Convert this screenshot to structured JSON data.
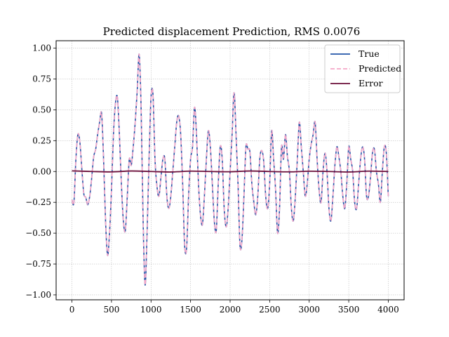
{
  "chart_data": {
    "type": "line",
    "title": "Predicted displacement Prediction, RMS 0.0076",
    "xlabel": "",
    "ylabel": "",
    "xlim": [
      -200,
      4200
    ],
    "ylim": [
      -1.04,
      1.06
    ],
    "xticks": [
      0,
      500,
      1000,
      1500,
      2000,
      2500,
      3000,
      3500,
      4000
    ],
    "xtick_labels": [
      "0",
      "500",
      "1000",
      "1500",
      "2000",
      "2500",
      "3000",
      "3500",
      "4000"
    ],
    "yticks": [
      1.0,
      0.75,
      0.5,
      0.25,
      0.0,
      -0.25,
      -0.5,
      -0.75,
      -1.0
    ],
    "ytick_labels": [
      "1.00",
      "0.75",
      "0.50",
      "0.25",
      "0.00",
      "−0.25",
      "−0.50",
      "−0.75",
      "−1.00"
    ],
    "grid": true,
    "legend_position": "top-right",
    "series": [
      {
        "name": "True",
        "color": "#2255a8",
        "style": "solid",
        "x": [
          0,
          25,
          50,
          75,
          100,
          125,
          150,
          175,
          200,
          225,
          250,
          275,
          300,
          325,
          350,
          375,
          400,
          425,
          450,
          475,
          500,
          525,
          550,
          575,
          600,
          625,
          650,
          675,
          700,
          725,
          750,
          775,
          800,
          825,
          850,
          875,
          900,
          925,
          950,
          975,
          1000,
          1025,
          1050,
          1075,
          1100,
          1125,
          1150,
          1175,
          1200,
          1225,
          1250,
          1275,
          1300,
          1325,
          1350,
          1375,
          1400,
          1425,
          1450,
          1475,
          1500,
          1525,
          1550,
          1575,
          1600,
          1625,
          1650,
          1675,
          1700,
          1725,
          1750,
          1775,
          1800,
          1825,
          1850,
          1875,
          1900,
          1925,
          1950,
          1975,
          2000,
          2025,
          2050,
          2075,
          2100,
          2125,
          2150,
          2175,
          2200,
          2225,
          2250,
          2275,
          2300,
          2325,
          2350,
          2375,
          2400,
          2425,
          2450,
          2475,
          2500,
          2525,
          2550,
          2575,
          2600,
          2625,
          2650,
          2675,
          2700,
          2725,
          2750,
          2775,
          2800,
          2825,
          2850,
          2875,
          2900,
          2925,
          2950,
          2975,
          3000,
          3025,
          3050,
          3075,
          3100,
          3125,
          3150,
          3175,
          3200,
          3225,
          3250,
          3275,
          3300,
          3325,
          3350,
          3375,
          3400,
          3425,
          3450,
          3475,
          3500,
          3525,
          3550,
          3575,
          3600,
          3625,
          3650,
          3675,
          3700,
          3725,
          3750,
          3775,
          3800,
          3825,
          3850,
          3875,
          3900,
          3925,
          3950,
          3975,
          4000
        ],
        "y": [
          -0.23,
          -0.25,
          0.1,
          0.3,
          0.24,
          0.02,
          -0.18,
          -0.21,
          -0.27,
          -0.2,
          -0.05,
          0.12,
          0.18,
          0.3,
          0.4,
          0.47,
          0.1,
          -0.4,
          -0.68,
          -0.5,
          -0.15,
          0.3,
          0.55,
          0.6,
          0.3,
          -0.1,
          -0.4,
          -0.48,
          -0.2,
          0.1,
          0.05,
          0.2,
          0.4,
          0.65,
          0.95,
          0.5,
          -0.4,
          -0.92,
          -0.5,
          0.1,
          0.6,
          0.62,
          0.1,
          -0.12,
          -0.2,
          -0.05,
          0.1,
          0.1,
          -0.2,
          -0.3,
          -0.2,
          0.0,
          0.2,
          0.4,
          0.45,
          0.3,
          -0.1,
          -0.6,
          -0.62,
          -0.2,
          0.1,
          0.2,
          0.52,
          0.3,
          -0.1,
          -0.35,
          -0.43,
          -0.2,
          0.1,
          0.33,
          0.2,
          -0.1,
          -0.4,
          -0.48,
          -0.1,
          0.2,
          0.1,
          -0.3,
          -0.45,
          -0.3,
          0.0,
          0.3,
          0.64,
          0.3,
          -0.1,
          -0.6,
          -0.55,
          -0.2,
          0.2,
          0.18,
          0.16,
          -0.1,
          -0.25,
          -0.35,
          -0.2,
          0.1,
          0.17,
          0.08,
          -0.2,
          -0.3,
          -0.1,
          0.33,
          0.1,
          -0.15,
          -0.5,
          -0.3,
          0.2,
          0.1,
          0.3,
          0.12,
          0.0,
          -0.3,
          -0.4,
          -0.2,
          0.1,
          0.4,
          0.2,
          0.0,
          -0.2,
          -0.1,
          0.1,
          0.22,
          0.3,
          0.4,
          0.1,
          -0.15,
          -0.25,
          0.0,
          0.15,
          0.0,
          -0.3,
          -0.4,
          -0.2,
          0.05,
          0.2,
          0.12,
          0.0,
          -0.2,
          -0.3,
          -0.1,
          0.2,
          0.1,
          0.0,
          -0.25,
          -0.3,
          -0.1,
          0.1,
          0.2,
          0.1,
          -0.2,
          -0.2,
          -0.05,
          0.15,
          0.18,
          0.0,
          -0.1,
          -0.25,
          0.0,
          0.2,
          0.15,
          -0.2
        ]
      },
      {
        "name": "Predicted",
        "color": "#f4a6c8",
        "style": "dashed",
        "x": [
          0,
          25,
          50,
          75,
          100,
          125,
          150,
          175,
          200,
          225,
          250,
          275,
          300,
          325,
          350,
          375,
          400,
          425,
          450,
          475,
          500,
          525,
          550,
          575,
          600,
          625,
          650,
          675,
          700,
          725,
          750,
          775,
          800,
          825,
          850,
          875,
          900,
          925,
          950,
          975,
          1000,
          1025,
          1050,
          1075,
          1100,
          1125,
          1150,
          1175,
          1200,
          1225,
          1250,
          1275,
          1300,
          1325,
          1350,
          1375,
          1400,
          1425,
          1450,
          1475,
          1500,
          1525,
          1550,
          1575,
          1600,
          1625,
          1650,
          1675,
          1700,
          1725,
          1750,
          1775,
          1800,
          1825,
          1850,
          1875,
          1900,
          1925,
          1950,
          1975,
          2000,
          2025,
          2050,
          2075,
          2100,
          2125,
          2150,
          2175,
          2200,
          2225,
          2250,
          2275,
          2300,
          2325,
          2350,
          2375,
          2400,
          2425,
          2450,
          2475,
          2500,
          2525,
          2550,
          2575,
          2600,
          2625,
          2650,
          2675,
          2700,
          2725,
          2750,
          2775,
          2800,
          2825,
          2850,
          2875,
          2900,
          2925,
          2950,
          2975,
          3000,
          3025,
          3050,
          3075,
          3100,
          3125,
          3150,
          3175,
          3200,
          3225,
          3250,
          3275,
          3300,
          3325,
          3350,
          3375,
          3400,
          3425,
          3450,
          3475,
          3500,
          3525,
          3550,
          3575,
          3600,
          3625,
          3650,
          3675,
          3700,
          3725,
          3750,
          3775,
          3800,
          3825,
          3850,
          3875,
          3900,
          3925,
          3950,
          3975,
          4000
        ],
        "y": [
          -0.23,
          -0.25,
          0.1,
          0.3,
          0.24,
          0.02,
          -0.18,
          -0.21,
          -0.27,
          -0.2,
          -0.05,
          0.12,
          0.18,
          0.3,
          0.4,
          0.47,
          0.1,
          -0.4,
          -0.68,
          -0.5,
          -0.15,
          0.3,
          0.55,
          0.6,
          0.3,
          -0.1,
          -0.4,
          -0.48,
          -0.2,
          0.1,
          0.05,
          0.2,
          0.4,
          0.65,
          0.95,
          0.5,
          -0.4,
          -0.92,
          -0.5,
          0.1,
          0.6,
          0.62,
          0.1,
          -0.12,
          -0.2,
          -0.05,
          0.1,
          0.1,
          -0.2,
          -0.3,
          -0.2,
          0.0,
          0.2,
          0.4,
          0.45,
          0.3,
          -0.1,
          -0.6,
          -0.62,
          -0.2,
          0.1,
          0.2,
          0.52,
          0.3,
          -0.1,
          -0.35,
          -0.43,
          -0.2,
          0.1,
          0.33,
          0.2,
          -0.1,
          -0.4,
          -0.48,
          -0.1,
          0.2,
          0.1,
          -0.3,
          -0.45,
          -0.3,
          0.0,
          0.3,
          0.64,
          0.3,
          -0.1,
          -0.6,
          -0.55,
          -0.2,
          0.2,
          0.18,
          0.16,
          -0.1,
          -0.25,
          -0.35,
          -0.2,
          0.1,
          0.17,
          0.08,
          -0.2,
          -0.3,
          -0.1,
          0.33,
          0.1,
          -0.15,
          -0.5,
          -0.3,
          0.2,
          0.1,
          0.3,
          0.12,
          0.0,
          -0.3,
          -0.4,
          -0.2,
          0.1,
          0.4,
          0.2,
          0.0,
          -0.2,
          -0.1,
          0.1,
          0.22,
          0.3,
          0.4,
          0.1,
          -0.15,
          -0.25,
          0.0,
          0.15,
          0.0,
          -0.3,
          -0.4,
          -0.2,
          0.05,
          0.2,
          0.12,
          0.0,
          -0.2,
          -0.3,
          -0.1,
          0.2,
          0.1,
          0.0,
          -0.25,
          -0.3,
          -0.1,
          0.1,
          0.2,
          0.1,
          -0.2,
          -0.2,
          -0.05,
          0.15,
          0.18,
          0.0,
          -0.1,
          -0.25,
          0.0,
          0.2,
          0.15,
          -0.2
        ]
      },
      {
        "name": "Error",
        "color": "#6b0f3a",
        "style": "solid",
        "x": [
          0,
          250,
          500,
          750,
          1000,
          1250,
          1500,
          1750,
          2000,
          2250,
          2500,
          2750,
          3000,
          3250,
          3500,
          3750,
          4000
        ],
        "y": [
          0.005,
          0.0,
          -0.003,
          0.004,
          0.0,
          -0.004,
          0.003,
          0.0,
          -0.002,
          0.004,
          0.0,
          -0.003,
          0.002,
          0.0,
          -0.004,
          0.003,
          0.0
        ]
      }
    ]
  }
}
